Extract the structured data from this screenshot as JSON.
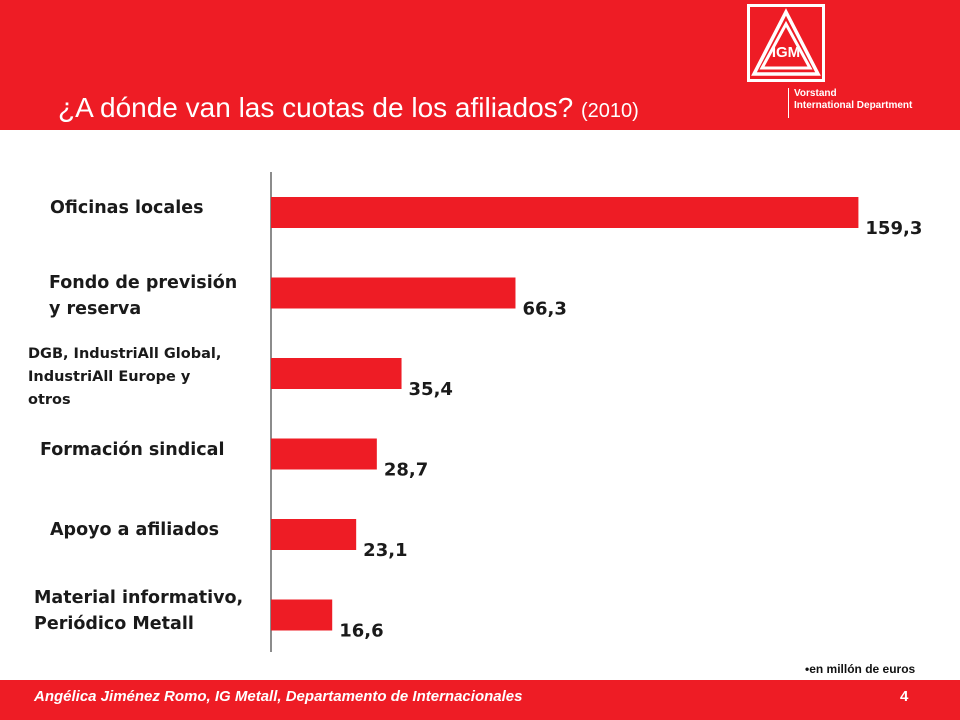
{
  "header": {
    "title": "¿A dónde van las cuotas de los afiliados?",
    "title_year": "(2010)",
    "org_line1": "Vorstand",
    "org_line2": "International Department",
    "logo_letters": "IGM"
  },
  "chart_data": {
    "type": "bar",
    "orientation": "horizontal",
    "categories": [
      "Oficinas locales",
      "Fondo de previsión y reserva",
      "DGB, IndustriAll Global, IndustriAll Europe y otros",
      "Formación sindical",
      "Apoyo a afiliados",
      "Material informativo, Periódico Metall"
    ],
    "category_lines": [
      [
        "Oficinas locales"
      ],
      [
        "Fondo de previsión",
        "y reserva"
      ],
      [
        "DGB, IndustriAll Global,",
        "IndustriAll Europe y",
        "otros"
      ],
      [
        "Formación sindical"
      ],
      [
        "Apoyo a afiliados"
      ],
      [
        "Material informativo,",
        "Periódico Metall"
      ]
    ],
    "values": [
      159.3,
      66.3,
      35.4,
      28.7,
      23.1,
      16.6
    ],
    "value_labels": [
      "159,3",
      "66,3",
      "35,4",
      "28,7",
      "23,1",
      "16,6"
    ],
    "bar_color": "#ee1c25",
    "xlim": [
      0,
      160
    ],
    "grid": false,
    "note": "•en millón de euros"
  },
  "footer": {
    "text": "Angélica Jiménez Romo, IG Metall, Departamento de Internacionales",
    "page": "4"
  },
  "colors": {
    "brand_red": "#ee1c25",
    "text_dark": "#1a1a1a"
  }
}
